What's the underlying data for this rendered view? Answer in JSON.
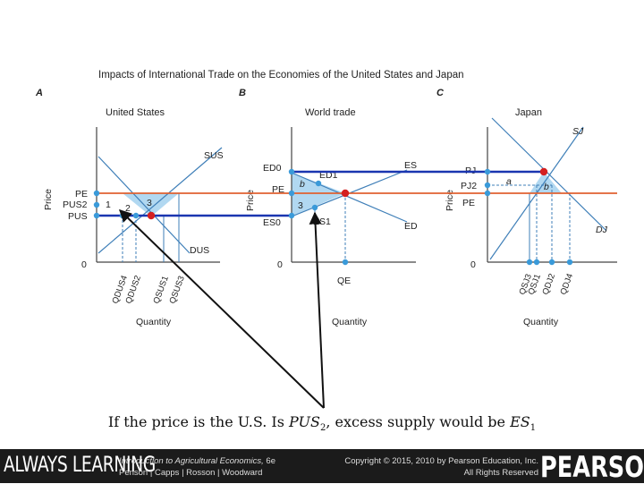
{
  "diagram": {
    "title": "Impacts of International Trade on the Economies of the United States and Japan",
    "panel_letters": [
      "A",
      "B",
      "C"
    ],
    "panels": {
      "us": {
        "title": "United States",
        "y_axis_label": "Price",
        "x_axis_label": "Quantity",
        "origin": "0",
        "curves": {
          "supply": "SUS",
          "demand": "DUS"
        },
        "price_labels": [
          "PE",
          "PUS2",
          "PUS"
        ],
        "area_labels": [
          "1",
          "2",
          "3"
        ],
        "quantity_ticks": [
          "QDUS4",
          "QDUS2",
          "QSUS1",
          "QSUS3"
        ]
      },
      "world": {
        "title": "World trade",
        "y_axis_label": "Price",
        "x_axis_label": "Quantity",
        "origin": "0",
        "curves": {
          "excess_supply": "ES",
          "excess_demand": "ED"
        },
        "price_labels": [
          "ED0",
          "PE",
          "ES0"
        ],
        "point_labels": [
          "ED1",
          "ES1"
        ],
        "area_labels": [
          "b",
          "3"
        ],
        "quantity_ticks": [
          "QE"
        ]
      },
      "japan": {
        "title": "Japan",
        "y_axis_label": "Price",
        "x_axis_label": "Quantity",
        "origin": "0",
        "curves": {
          "supply": "SJ",
          "demand": "DJ"
        },
        "price_labels": [
          "PJ",
          "PJ2",
          "PE"
        ],
        "area_labels": [
          "a",
          "b"
        ],
        "quantity_ticks": [
          "QSJ3",
          "QSJ1",
          "QDJ2",
          "QDJ4"
        ]
      }
    },
    "colors": {
      "equilibrium_line": "#e06030",
      "policy_line": "#1a35b0",
      "accent_dot": "#3a9ad9",
      "highlight_dot": "#d42020",
      "shaded_area": "#a9d4ef",
      "curve": "#3f7fb8",
      "axis": "#444444"
    },
    "icons": [
      "pointer-arrow"
    ]
  },
  "caption": {
    "text_1": "If the price is the U.S. Is ",
    "pus": "PUS",
    "pus_sub": "2",
    "text_2": ", excess supply would be ",
    "es": "ES",
    "es_sub": "1"
  },
  "footer": {
    "brand_left": "ALWAYS LEARNING",
    "book_title": "Introduction to Agricultural Economics,",
    "edition": "6e",
    "authors": "Penson | Capps | Rosson | Woodward",
    "copyright": "Copyright © 2015, 2010 by Pearson Education, Inc.",
    "rights": "All Rights Reserved",
    "brand_right": "PEARSON"
  }
}
